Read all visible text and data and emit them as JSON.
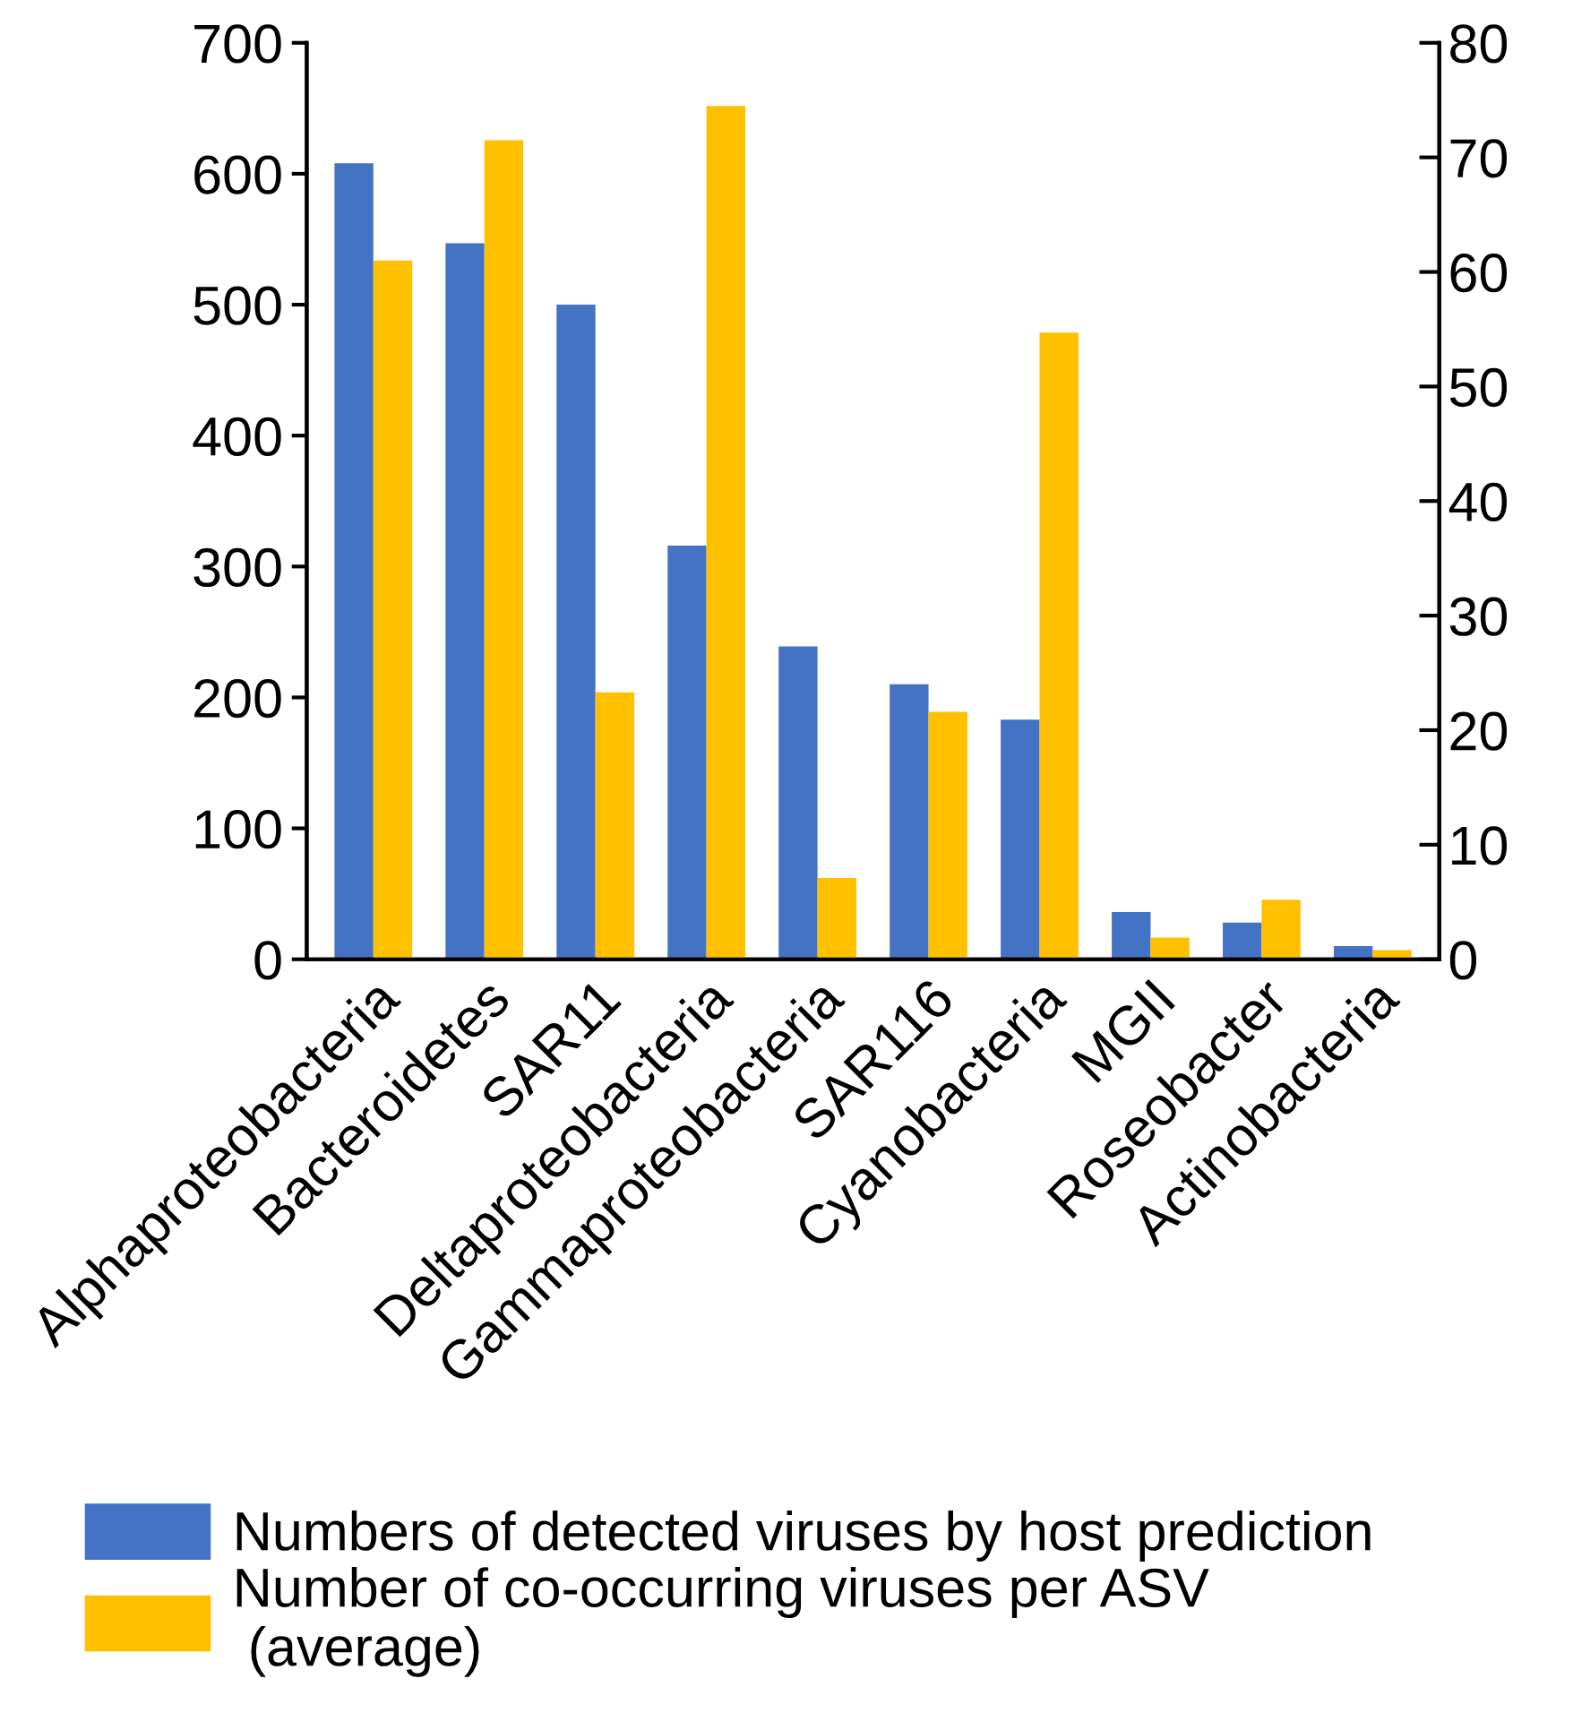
{
  "chart_data": {
    "type": "bar",
    "categories": [
      "Alphaproteobacteria",
      "Bacteroidetes",
      "SAR11",
      "Deltaproteobacteria",
      "Gammaproteobacteria",
      "SAR116",
      "Cyanobacteria",
      "MGII",
      "Roseobacter",
      "Actinobacteria"
    ],
    "series": [
      {
        "name": "Numbers of detected viruses by host prediction",
        "color": "#4472c4",
        "values": [
          608,
          547,
          500,
          316,
          239,
          210,
          183,
          36,
          28,
          10
        ]
      },
      {
        "name": "Number of co-occurring viruses per ASV\n (average)",
        "color": "#ffc000",
        "axis": "y2",
        "values": [
          61.0,
          71.5,
          23.3,
          74.5,
          7.1,
          21.6,
          54.7,
          1.9,
          5.2,
          0.8
        ]
      }
    ],
    "ylim": [
      0,
      700
    ],
    "yticks": [
      0,
      100,
      200,
      300,
      400,
      500,
      600,
      700
    ],
    "y2lim": [
      0,
      80
    ],
    "y2ticks": [
      0,
      10,
      20,
      30,
      40,
      50,
      60,
      70,
      80
    ],
    "grid": false,
    "legend": "bottom"
  }
}
